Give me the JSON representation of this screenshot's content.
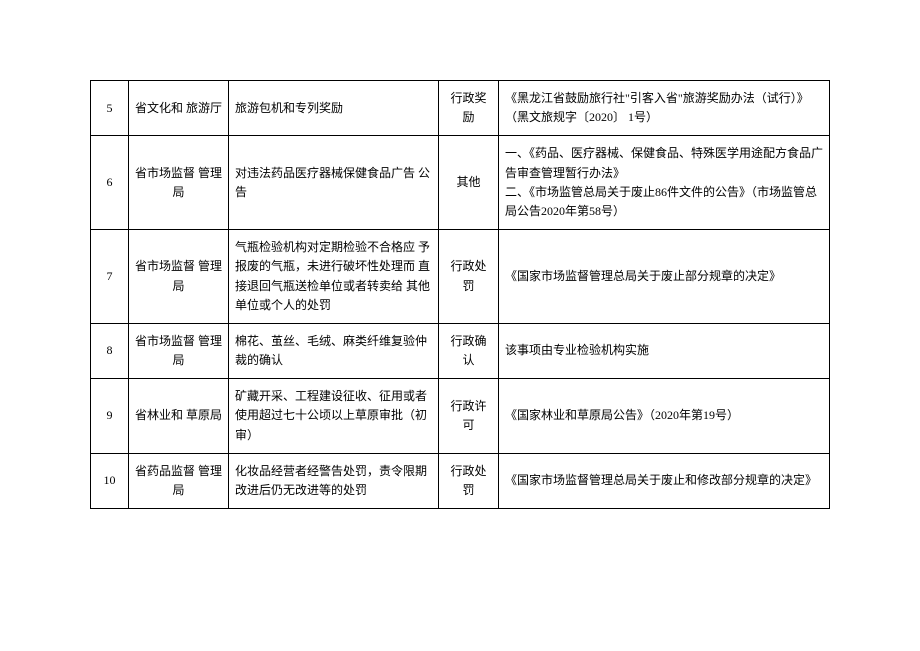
{
  "rows": [
    {
      "idx": "5",
      "dept": "省文化和 旅游厅",
      "matter": "旅游包机和专列奖励",
      "type": "行政奖励",
      "basis": "《黑龙江省鼓励旅行社\"引客入省\"旅游奖励办法（试行）》（黑文旅规字〔2020〕 1号）"
    },
    {
      "idx": "6",
      "dept": "省市场监督 管理局",
      "matter": "对违法药品医疗器械保健食品广告 公告",
      "type": "其他",
      "basis": "一、《药品、医疗器械、保健食品、特殊医学用途配方食品广告审查管理暂行办法》\n二、《市场监管总局关于废止86件文件的公告》（市场监管总局公告2020年第58号）"
    },
    {
      "idx": "7",
      "dept": "省市场监督 管理局",
      "matter": "气瓶检验机构对定期检验不合格应 予报废的气瓶，未进行破坏性处理而 直接退回气瓶送检单位或者转卖给 其他单位或个人的处罚",
      "type": "行政处罚",
      "basis": "《国家市场监督管理总局关于废止部分规章的决定》"
    },
    {
      "idx": "8",
      "dept": "省市场监督 管理局",
      "matter": "棉花、茧丝、毛绒、麻类纤维复验仲裁的确认",
      "type": "行政确认",
      "basis": "该事项由专业检验机构实施"
    },
    {
      "idx": "9",
      "dept": "省林业和 草原局",
      "matter": "矿藏开采、工程建设征收、征用或者使用超过七十公顷以上草原审批（初审）",
      "type": "行政许可",
      "basis": "《国家林业和草原局公告》（2020年第19号）"
    },
    {
      "idx": "10",
      "dept": "省药品监督 管理局",
      "matter": "化妆品经营者经警告处罚，责令限期改进后仍无改进等的处罚",
      "type": "行政处罚",
      "basis": "《国家市场监督管理总局关于废止和修改部分规章的决定》"
    }
  ]
}
